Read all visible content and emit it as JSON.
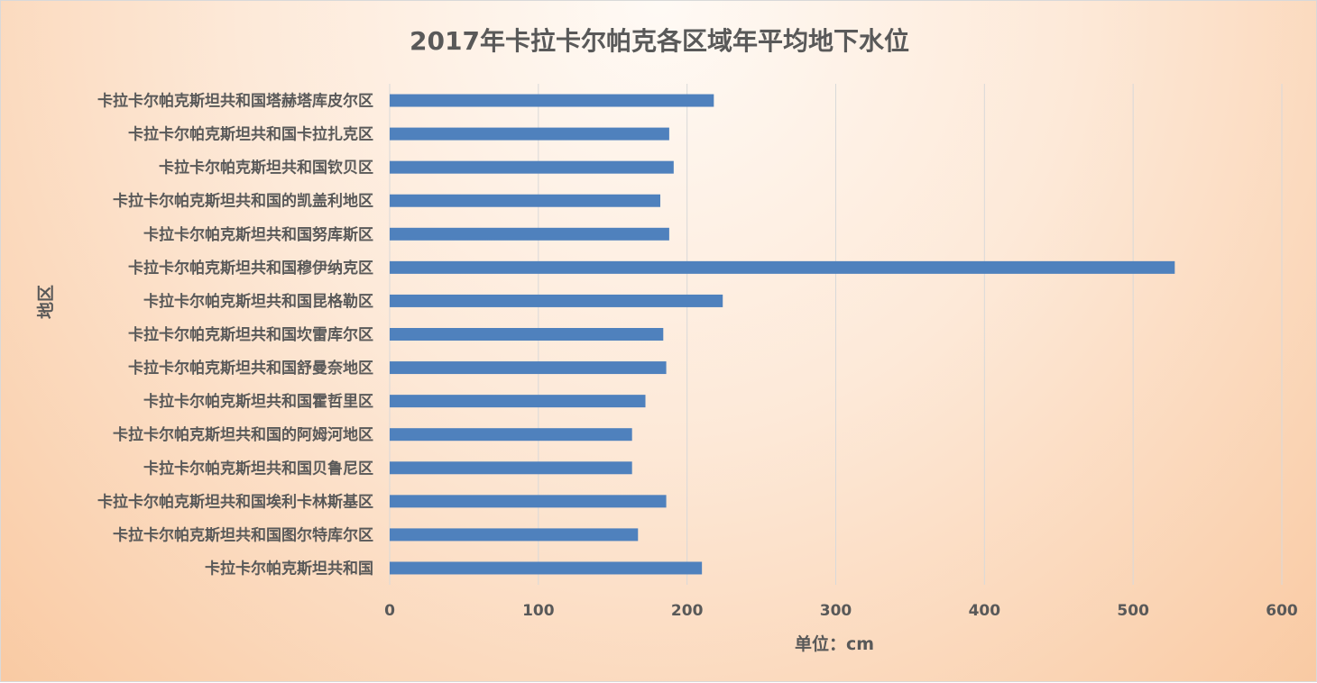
{
  "chart_data": {
    "type": "bar",
    "orientation": "horizontal",
    "title": "2017年卡拉卡尔帕克各区域年平均地下水位",
    "xlabel": "单位：cm",
    "ylabel": "地区",
    "xlim": [
      0,
      600
    ],
    "xticks": [
      0,
      100,
      200,
      300,
      400,
      500,
      600
    ],
    "grid": true,
    "bar_color": "#4f81bd",
    "categories": [
      "卡拉卡尔帕克斯坦共和国塔赫塔库皮尔区",
      "卡拉卡尔帕克斯坦共和国卡拉扎克区",
      "卡拉卡尔帕克斯坦共和国钦贝区",
      "卡拉卡尔帕克斯坦共和国的凯盖利地区",
      "卡拉卡尔帕克斯坦共和国努库斯区",
      "卡拉卡尔帕克斯坦共和国穆伊纳克区",
      "卡拉卡尔帕克斯坦共和国昆格勒区",
      "卡拉卡尔帕克斯坦共和国坎雷库尔区",
      "卡拉卡尔帕克斯坦共和国舒曼奈地区",
      "卡拉卡尔帕克斯坦共和国霍哲里区",
      "卡拉卡尔帕克斯坦共和国的阿姆河地区",
      "卡拉卡尔帕克斯坦共和国贝鲁尼区",
      "卡拉卡尔帕克斯坦共和国埃利卡林斯基区",
      "卡拉卡尔帕克斯坦共和国图尔特库尔区",
      "卡拉卡尔帕克斯坦共和国"
    ],
    "values": [
      218,
      188,
      191,
      182,
      188,
      528,
      224,
      184,
      186,
      172,
      163,
      163,
      186,
      167,
      210
    ]
  }
}
